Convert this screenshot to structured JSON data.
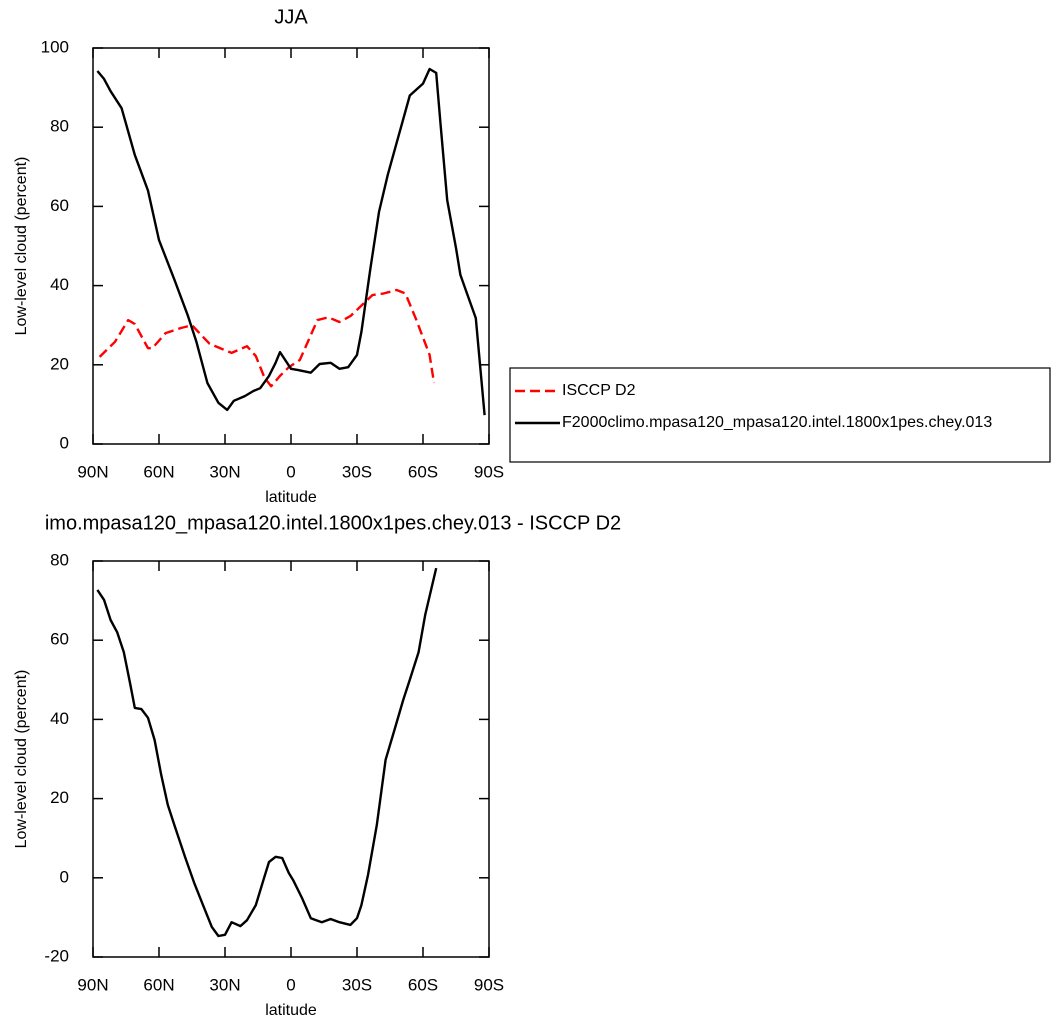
{
  "chart_data": [
    {
      "type": "line",
      "title": "JJA",
      "xlabel": "latitude",
      "ylabel": "Low-level cloud (percent)",
      "xlim": [
        90,
        -90
      ],
      "xticks": [
        {
          "value": 90,
          "label": "90N"
        },
        {
          "value": 60,
          "label": "60N"
        },
        {
          "value": 30,
          "label": "30N"
        },
        0,
        {
          "value": -30,
          "label": "30S"
        },
        {
          "value": -60,
          "label": "60S"
        },
        {
          "value": -90,
          "label": "90S"
        }
      ],
      "ylim": [
        0,
        100
      ],
      "yticks": [
        0,
        20,
        40,
        60,
        80,
        100
      ],
      "legend": "outside-right",
      "series": [
        {
          "name": "ISCCP D2",
          "color": "#ff0000",
          "linestyle": "dashed",
          "x": [
            87,
            80,
            74,
            71,
            65,
            63,
            57,
            50,
            45,
            37,
            27,
            20,
            16,
            12,
            9,
            5,
            1,
            -4,
            -12,
            -17,
            -22,
            -27,
            -37,
            -42,
            -48,
            -52,
            -57,
            -63,
            -65
          ],
          "values": [
            22,
            25.8,
            31.3,
            30.3,
            24.2,
            24.2,
            28,
            29.3,
            30,
            25.3,
            23,
            24.7,
            22.2,
            16.7,
            14.6,
            17.2,
            19.4,
            21.2,
            31.3,
            32,
            30.8,
            32.3,
            37.6,
            38,
            38.9,
            38,
            31.3,
            22.5,
            15.4
          ]
        },
        {
          "name": "F2000climo.mpasa120_mpasa120.intel.1800x1pes.chey.013",
          "color": "#000000",
          "linestyle": "solid",
          "x": [
            88,
            85,
            82,
            77,
            71,
            65,
            60,
            53,
            47,
            43,
            38,
            33,
            29,
            26,
            21,
            17,
            14,
            10,
            7,
            5,
            0,
            -3,
            -9,
            -13,
            -18,
            -22,
            -26,
            -30,
            -32,
            -36,
            -40,
            -44,
            -49,
            -54,
            -60,
            -63,
            -66,
            -68,
            -71,
            -75,
            -77,
            -80,
            -84,
            -88
          ],
          "values": [
            94.2,
            92.2,
            89.1,
            84.8,
            73,
            64,
            51.5,
            41.5,
            32.6,
            25.8,
            15.4,
            10.4,
            8.6,
            10.9,
            12.1,
            13.4,
            14.1,
            17.2,
            20.5,
            23.2,
            19,
            18.7,
            18,
            20.2,
            20.5,
            19,
            19.4,
            22.5,
            28.3,
            44,
            58.6,
            68,
            78,
            88,
            91,
            94.7,
            93.7,
            80.6,
            61.6,
            49.5,
            42.7,
            38,
            31.8,
            7.3
          ]
        }
      ]
    },
    {
      "type": "line",
      "title": "imo.mpasa120_mpasa120.intel.1800x1pes.chey.013 - ISCCP D2",
      "xlabel": "latitude",
      "ylabel": "Low-level cloud (percent)",
      "xlim": [
        90,
        -90
      ],
      "xticks": [
        {
          "value": 90,
          "label": "90N"
        },
        {
          "value": 60,
          "label": "60N"
        },
        {
          "value": 30,
          "label": "30N"
        },
        0,
        {
          "value": -30,
          "label": "30S"
        },
        {
          "value": -60,
          "label": "60S"
        },
        {
          "value": -90,
          "label": "90S"
        }
      ],
      "ylim": [
        -20,
        80
      ],
      "yticks": [
        -20,
        0,
        20,
        40,
        60,
        80
      ],
      "series": [
        {
          "color": "#000000",
          "linestyle": "solid",
          "x": [
            88,
            85,
            82,
            79,
            76,
            73,
            71,
            68,
            65,
            62,
            59,
            56,
            53,
            48,
            44,
            40,
            36,
            33,
            30,
            27,
            23,
            20,
            16,
            12,
            10,
            7,
            4,
            1,
            -1,
            -5,
            -9,
            -14,
            -18,
            -22,
            -27,
            -30,
            -32,
            -35,
            -39,
            -43,
            -47,
            -51,
            -54,
            -58,
            -61,
            -66
          ],
          "values": [
            72.7,
            70.2,
            65.1,
            62,
            57,
            48.7,
            42.9,
            42.6,
            40.4,
            34.8,
            26,
            18.4,
            13.3,
            5,
            -1.3,
            -6.9,
            -12.4,
            -14.7,
            -14.4,
            -11.2,
            -12.2,
            -10.7,
            -6.9,
            0.4,
            4,
            5.3,
            5,
            1.2,
            -0.6,
            -5.1,
            -10.2,
            -11.2,
            -10.4,
            -11.2,
            -11.9,
            -10.2,
            -6.9,
            0.7,
            13.3,
            29.8,
            37.3,
            44.9,
            50,
            57,
            66.4,
            78.2
          ]
        }
      ]
    }
  ]
}
